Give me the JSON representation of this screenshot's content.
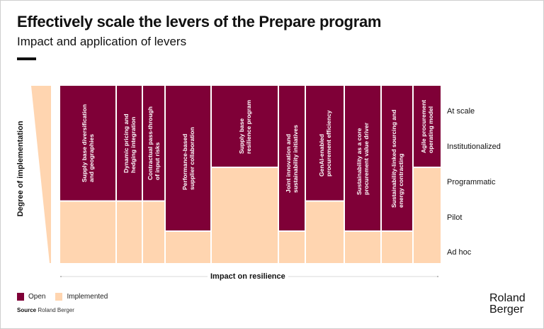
{
  "header": {
    "title": "Effectively scale the levers of the Prepare program",
    "subtitle": "Impact and application of levers"
  },
  "colors": {
    "open": "#7f0037",
    "implemented": "#ffd5b0",
    "wedge": "#ffd5b0"
  },
  "chart_data": {
    "type": "bar",
    "stacked": true,
    "title": "Effectively scale the levers of the Prepare program",
    "xlabel": "Impact on resilience",
    "ylabel": "Degree of implementation",
    "ylim": [
      0,
      5
    ],
    "y_levels": [
      "Ad hoc",
      "Pilot",
      "Programmatic",
      "Institutionalized",
      "At scale"
    ],
    "categories": [
      "Supply base diversification\nand geographies",
      "Dynamic pricing and\nhedging integration",
      "Contractual pass-through\nof input risks",
      "Performance-based\nsupplier collaboration",
      "Supply base\nresilience program",
      "Joint innovation and\nsustainability initiatives",
      "GenAI-enabled\nprocurement efficiency",
      "Sustainability as a core\nprocurement value driver",
      "Sustainability-linked sourcing and\nenergy contracting",
      "Agile procurement\noperating model"
    ],
    "impact_weights": [
      78,
      35,
      30,
      63,
      93,
      36,
      53,
      50,
      43,
      38
    ],
    "series": [
      {
        "name": "Implemented",
        "values": [
          1.75,
          1.75,
          1.75,
          0.9,
          2.7,
          0.9,
          1.75,
          0.9,
          0.9,
          2.7
        ]
      },
      {
        "name": "Open",
        "values": [
          3.25,
          3.25,
          3.25,
          4.1,
          2.3,
          4.1,
          3.25,
          4.1,
          4.1,
          2.3
        ]
      }
    ],
    "legend": [
      "Open",
      "Implemented"
    ],
    "legend_position": "bottom-left"
  },
  "footer": {
    "legend_open": "Open",
    "legend_implemented": "Implemented",
    "source_label": "Source",
    "source_text": "Roland Berger",
    "logo_line1": "Roland",
    "logo_line2": "Berger"
  }
}
